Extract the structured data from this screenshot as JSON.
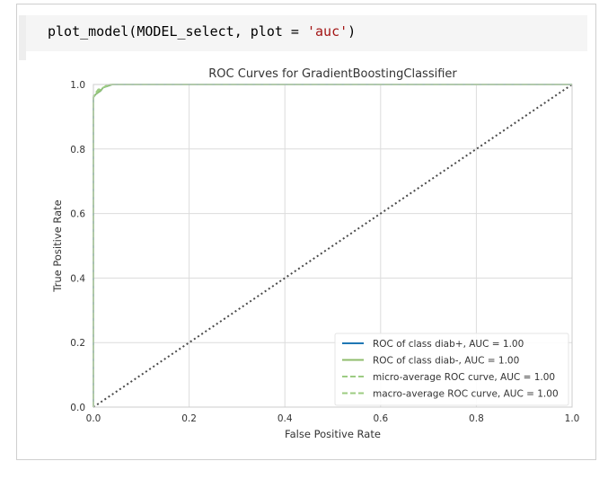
{
  "cell": {
    "code_fn": "plot_model(MODEL_select, plot = ",
    "code_arg": "'auc'",
    "code_end": ")"
  },
  "chart_data": {
    "type": "line",
    "title": "ROC Curves for GradientBoostingClassifier",
    "xlabel": "False Positive Rate",
    "ylabel": "True Positive Rate",
    "xlim": [
      0,
      1
    ],
    "ylim": [
      0,
      1
    ],
    "x_ticks": [
      "0.0",
      "0.2",
      "0.4",
      "0.6",
      "0.8",
      "1.0"
    ],
    "y_ticks": [
      "0.0",
      "0.2",
      "0.4",
      "0.6",
      "0.8",
      "1.0"
    ],
    "grid": true,
    "legend_position": "lower-right",
    "series": [
      {
        "name": "ROC of class diab+, AUC = 1.00",
        "color": "#1f77b4",
        "style": "solid",
        "x": [
          0,
          0,
          0.005,
          0.01,
          0.015,
          0.02,
          0.03,
          0.04,
          1
        ],
        "y": [
          0,
          0.96,
          0.97,
          0.975,
          0.98,
          0.99,
          0.995,
          1.0,
          1.0
        ]
      },
      {
        "name": "ROC of class diab-, AUC = 1.00",
        "color": "#8fbd6c",
        "style": "solid",
        "x": [
          0,
          0,
          0.005,
          0.01,
          0.015,
          0.02,
          0.03,
          0.04,
          1
        ],
        "y": [
          0,
          0.96,
          0.97,
          0.975,
          0.98,
          0.99,
          0.995,
          1.0,
          1.0
        ]
      },
      {
        "name": "micro-average ROC curve, AUC = 1.00",
        "color": "#9ccc82",
        "style": "dashed",
        "x": [
          0,
          0,
          0.005,
          0.01,
          0.02,
          0.03,
          1
        ],
        "y": [
          0,
          0.965,
          0.975,
          0.985,
          0.99,
          1.0,
          1.0
        ]
      },
      {
        "name": "macro-average ROC curve, AUC = 1.00",
        "color": "#9ccc82",
        "style": "dashed",
        "x": [
          0,
          0,
          0.005,
          0.01,
          0.02,
          0.035,
          1
        ],
        "y": [
          0,
          0.96,
          0.972,
          0.98,
          0.99,
          1.0,
          1.0
        ]
      },
      {
        "name": "",
        "color": "#4a4a4a",
        "style": "dotted",
        "x": [
          0,
          1
        ],
        "y": [
          0,
          1
        ]
      }
    ]
  }
}
